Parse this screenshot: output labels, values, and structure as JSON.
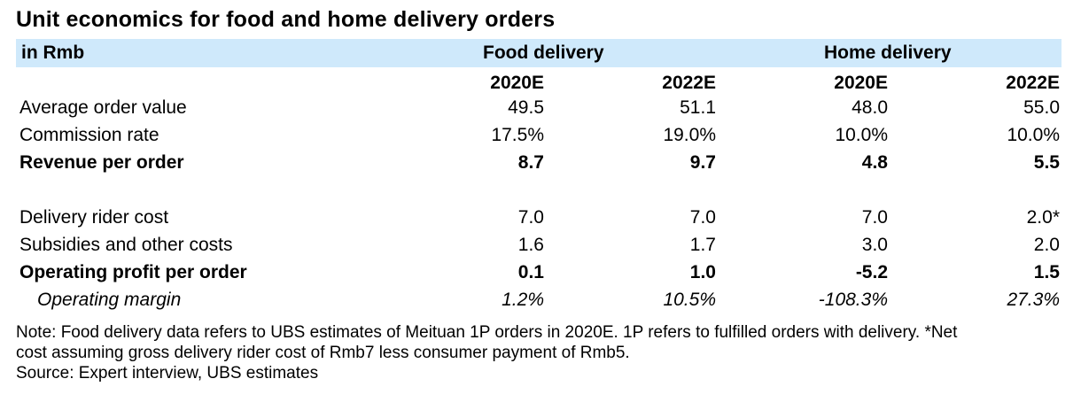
{
  "title": "Unit economics for food and home delivery orders",
  "header": {
    "unit": "in Rmb",
    "groups": [
      "Food delivery",
      "Home delivery"
    ],
    "years": [
      "2020E",
      "2022E",
      "2020E",
      "2022E"
    ]
  },
  "rows": [
    {
      "label": "Average order value",
      "values": [
        "49.5",
        "51.1",
        "48.0",
        "55.0"
      ],
      "style": "normal"
    },
    {
      "label": "Commission rate",
      "values": [
        "17.5%",
        "19.0%",
        "10.0%",
        "10.0%"
      ],
      "style": "normal"
    },
    {
      "label": "Revenue per order",
      "values": [
        "8.7",
        "9.7",
        "4.8",
        "5.5"
      ],
      "style": "bold"
    },
    {
      "label": "Delivery rider cost",
      "values": [
        "7.0",
        "7.0",
        "7.0",
        "2.0*"
      ],
      "style": "normal"
    },
    {
      "label": "Subsidies and other costs",
      "values": [
        "1.6",
        "1.7",
        "3.0",
        "2.0"
      ],
      "style": "normal"
    },
    {
      "label": "Operating profit per order",
      "values": [
        "0.1",
        "1.0",
        "-5.2",
        "1.5"
      ],
      "style": "bold"
    },
    {
      "label": "Operating margin",
      "values": [
        "1.2%",
        "10.5%",
        "-108.3%",
        "27.3%"
      ],
      "style": "italic"
    }
  ],
  "notes": {
    "line1": "Note: Food delivery data refers to UBS estimates of Meituan 1P orders in 2020E. 1P refers to fulfilled orders with delivery. *Net",
    "line2": "cost assuming gross delivery rider cost of Rmb7 less consumer payment of Rmb5.",
    "source": "Source:  Expert interview, UBS estimates"
  }
}
